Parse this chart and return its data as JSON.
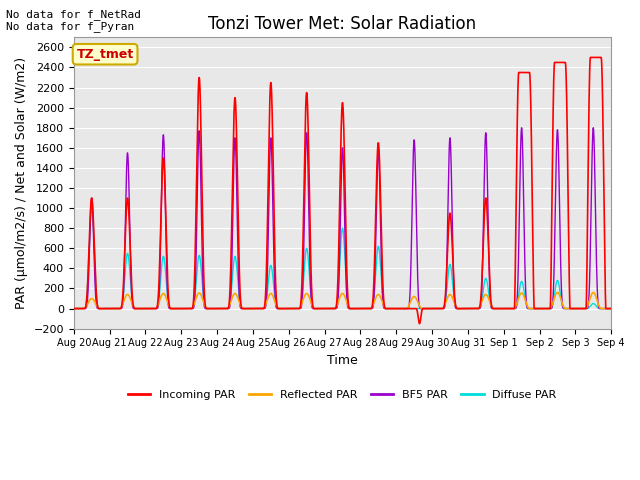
{
  "title": "Tonzi Tower Met: Solar Radiation",
  "xlabel": "Time",
  "ylabel": "PAR (μmol/m2/s) / Net and Solar (W/m2)",
  "ylim": [
    -200,
    2700
  ],
  "yticks": [
    -200,
    0,
    200,
    400,
    600,
    800,
    1000,
    1200,
    1400,
    1600,
    1800,
    2000,
    2200,
    2400,
    2600
  ],
  "annotation1": "No data for f_NetRad",
  "annotation2": "No data for f_Pyran",
  "box_label": "TZ_tmet",
  "colors": {
    "incoming": "#ff0000",
    "reflected": "#ffa500",
    "bf5": "#9900cc",
    "diffuse": "#00dddd"
  },
  "legend_labels": [
    "Incoming PAR",
    "Reflected PAR",
    "BF5 PAR",
    "Diffuse PAR"
  ],
  "x_tick_labels": [
    "Aug 20",
    "Aug 21",
    "Aug 22",
    "Aug 23",
    "Aug 24",
    "Aug 25",
    "Aug 26",
    "Aug 27",
    "Aug 28",
    "Aug 29",
    "Aug 30",
    "Aug 31",
    "Sep 1",
    "Sep 2",
    "Sep 3",
    "Sep 4"
  ],
  "num_days": 15,
  "background_color": "#e8e8e8",
  "title_fontsize": 12,
  "axes_fontsize": 9,
  "grid_color": "#ffffff"
}
